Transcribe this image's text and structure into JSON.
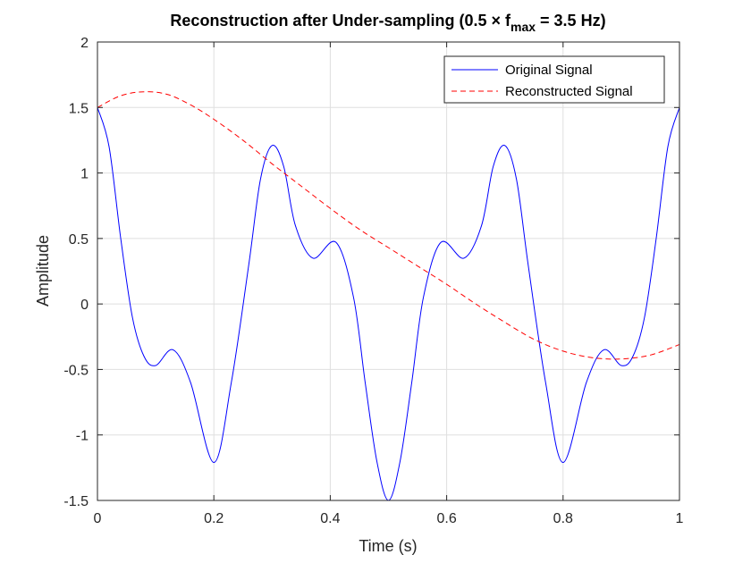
{
  "chart_data": {
    "type": "line",
    "title": {
      "main": "Reconstruction after Under-sampling (0.5 × f",
      "sub": "max",
      "tail": " = 3.5 Hz)"
    },
    "xlabel": "Time (s)",
    "ylabel": "Amplitude",
    "xlim": [
      0,
      1
    ],
    "ylim": [
      -1.5,
      2
    ],
    "xticks": [
      0,
      0.2,
      0.4,
      0.6,
      0.8,
      1
    ],
    "xtick_labels": [
      "0",
      "0.2",
      "0.4",
      "0.6",
      "0.8",
      "1"
    ],
    "yticks": [
      -1.5,
      -1,
      -0.5,
      0,
      0.5,
      1,
      1.5,
      2
    ],
    "ytick_labels": [
      "-1.5",
      "-1",
      "-0.5",
      "0",
      "0.5",
      "1",
      "1.5",
      "2"
    ],
    "grid": true,
    "legend_position": "top-right",
    "series": [
      {
        "name": "Original Signal",
        "color": "#0000ff",
        "style": "solid",
        "x": [
          0,
          0.02,
          0.04,
          0.06,
          0.08,
          0.1,
          0.13,
          0.16,
          0.2,
          0.23,
          0.26,
          0.28,
          0.3,
          0.32,
          0.34,
          0.37,
          0.41,
          0.44,
          0.46,
          0.48,
          0.5,
          0.52,
          0.54,
          0.56,
          0.59,
          0.63,
          0.66,
          0.68,
          0.7,
          0.72,
          0.74,
          0.77,
          0.8,
          0.84,
          0.87,
          0.9,
          0.92,
          0.94,
          0.96,
          0.98,
          1.0
        ],
        "y": [
          1.5,
          1.2,
          0.5,
          -0.1,
          -0.4,
          -0.47,
          -0.35,
          -0.6,
          -1.21,
          -0.6,
          0.3,
          0.95,
          1.21,
          1.05,
          0.6,
          0.35,
          0.47,
          0.05,
          -0.6,
          -1.2,
          -1.5,
          -1.2,
          -0.6,
          0.05,
          0.47,
          0.35,
          0.6,
          1.05,
          1.21,
          0.95,
          0.3,
          -0.6,
          -1.21,
          -0.6,
          -0.35,
          -0.47,
          -0.4,
          -0.1,
          0.5,
          1.2,
          1.5
        ]
      },
      {
        "name": "Reconstructed Signal",
        "color": "#ff0000",
        "style": "dashed",
        "x": [
          0,
          0.04,
          0.08,
          0.12,
          0.16,
          0.2,
          0.25,
          0.3,
          0.35,
          0.4,
          0.45,
          0.5,
          0.55,
          0.6,
          0.65,
          0.7,
          0.75,
          0.8,
          0.85,
          0.9,
          0.95,
          1.0
        ],
        "y": [
          1.5,
          1.59,
          1.62,
          1.6,
          1.52,
          1.41,
          1.25,
          1.07,
          0.9,
          0.73,
          0.57,
          0.43,
          0.29,
          0.15,
          0.0,
          -0.14,
          -0.27,
          -0.36,
          -0.41,
          -0.42,
          -0.39,
          -0.31
        ]
      }
    ]
  }
}
